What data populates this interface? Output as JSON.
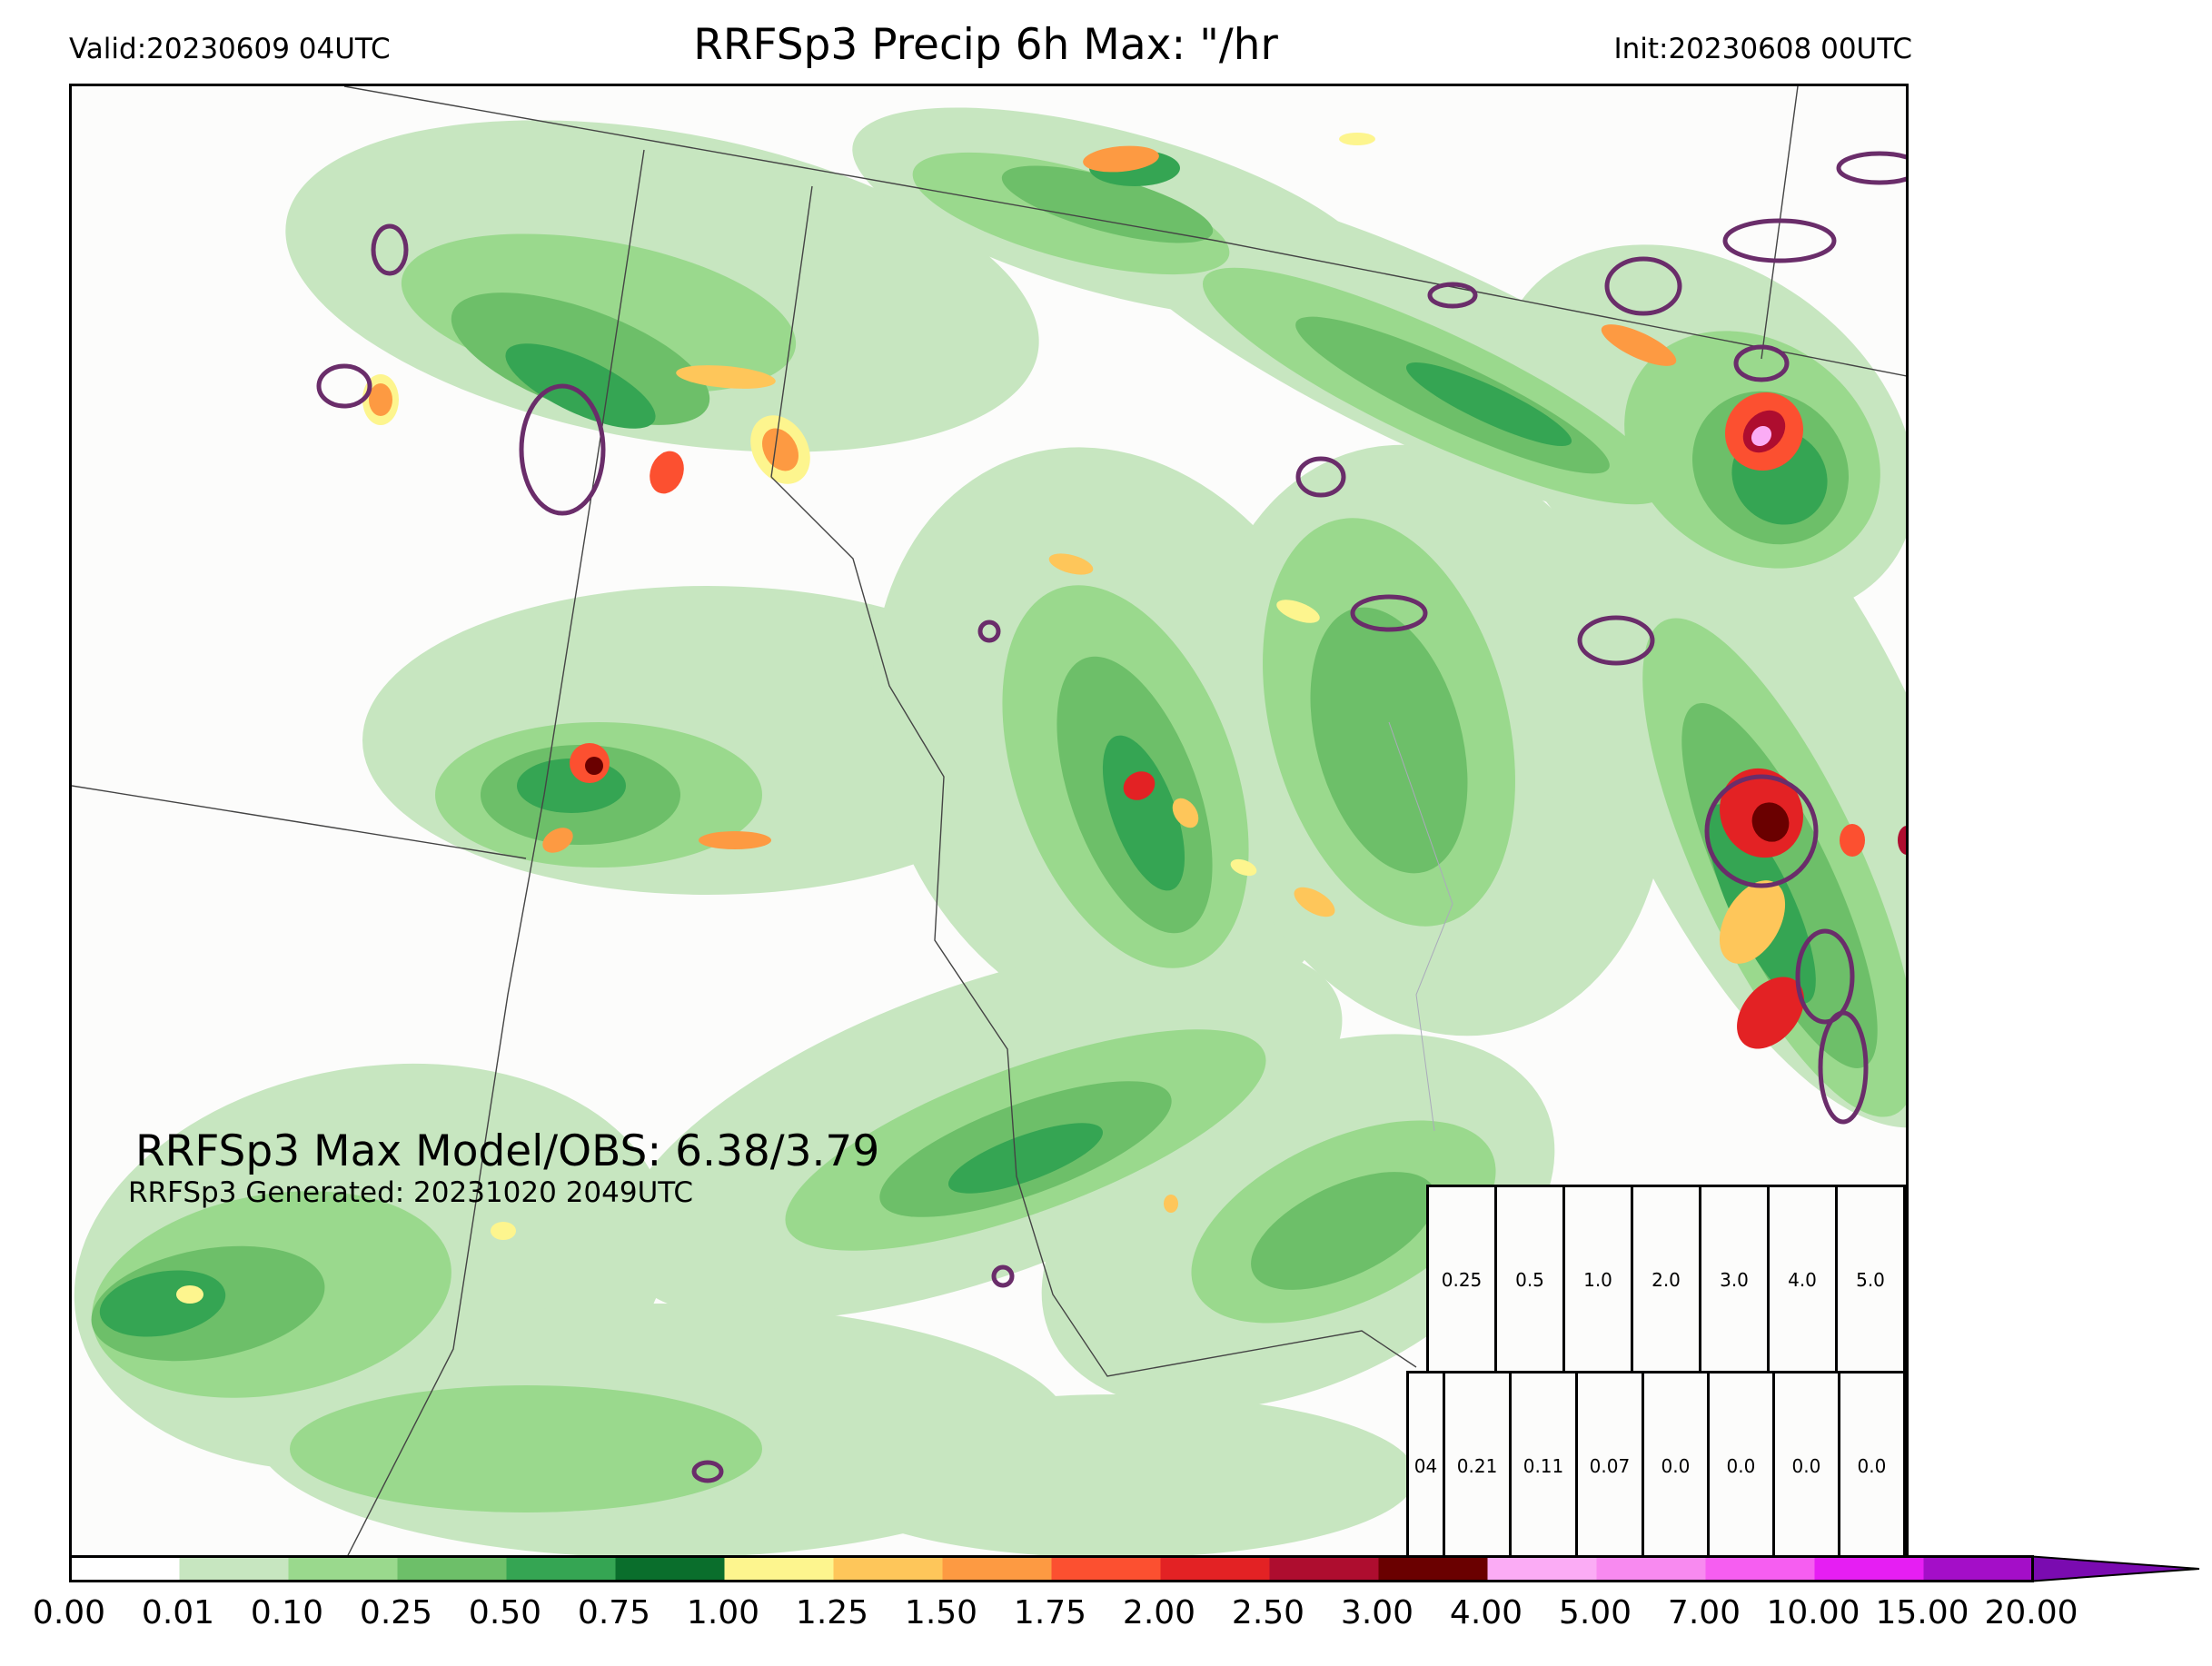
{
  "header": {
    "valid": "Valid:20230609 04UTC",
    "title": "RRFSp3 Precip 6h Max: \"/hr",
    "init": "Init:20230608 00UTC"
  },
  "annotations": {
    "max_line": "RRFSp3 Max Model/OBS: 6.38/3.79",
    "generated_line": "RRFSp3 Generated: 20231020 2049UTC"
  },
  "stats_table": {
    "thresholds": [
      "0.25",
      "0.5",
      "1.0",
      "2.0",
      "3.0",
      "4.0",
      "5.0"
    ],
    "values_lead": "04",
    "values": [
      "0.21",
      "0.11",
      "0.07",
      "0.0",
      "0.0",
      "0.0",
      "0.0"
    ]
  },
  "colorbar": {
    "tick_labels": [
      "0.00",
      "0.01",
      "0.10",
      "0.25",
      "0.50",
      "0.75",
      "1.00",
      "1.25",
      "1.50",
      "1.75",
      "2.00",
      "2.50",
      "3.00",
      "4.00",
      "5.00",
      "7.00",
      "10.00",
      "15.00",
      "20.00"
    ],
    "colors": [
      "#ffffff",
      "#c7e6c0",
      "#9ad98d",
      "#6dbf69",
      "#35a553",
      "#0a6e2c",
      "#fdf58e",
      "#fec65a",
      "#fd9a42",
      "#fc5030",
      "#e32224",
      "#ae0d2f",
      "#6a0000",
      "#fbacf5",
      "#f88af0",
      "#f65ef1",
      "#e61ef3",
      "#a40ec8"
    ],
    "extend_color": "#7a0bb0"
  },
  "map": {
    "obs_contour_color": "#6a2d6a",
    "boundary_color": "#444444"
  }
}
